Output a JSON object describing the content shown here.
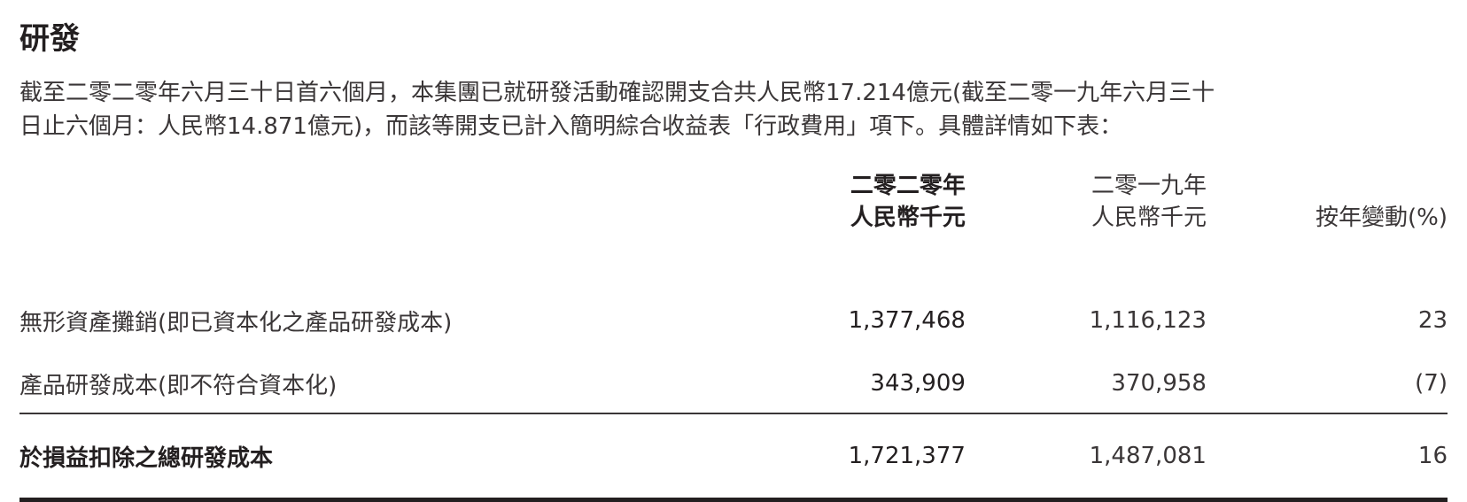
{
  "section": {
    "title": "研發",
    "paragraph_lines": [
      "截至二零二零年六月三十日首六個月，本集團已就研發活動確認開支合共人民幣17.214億元(截至二零一九年六月三十",
      "日止六個月：人民幣14.871億元)，而該等開支已計入簡明綜合收益表「行政費用」項下。具體詳情如下表："
    ]
  },
  "table": {
    "headers": {
      "col_2020_line1": "二零二零年",
      "col_2020_line2": "人民幣千元",
      "col_2019_line1": "二零一九年",
      "col_2019_line2": "人民幣千元",
      "col_change": "按年變動(%)"
    },
    "rows": [
      {
        "label": "無形資產攤銷(即已資本化之產品研發成本)",
        "v2020": "1,377,468",
        "v2019": "1,116,123",
        "change": "23"
      },
      {
        "label": "產品研發成本(即不符合資本化)",
        "v2020": "343,909",
        "v2019": "370,958",
        "change": "(7)"
      }
    ],
    "total": {
      "label": "於損益扣除之總研發成本",
      "v2020": "1,721,377",
      "v2019": "1,487,081",
      "change": "16"
    }
  }
}
